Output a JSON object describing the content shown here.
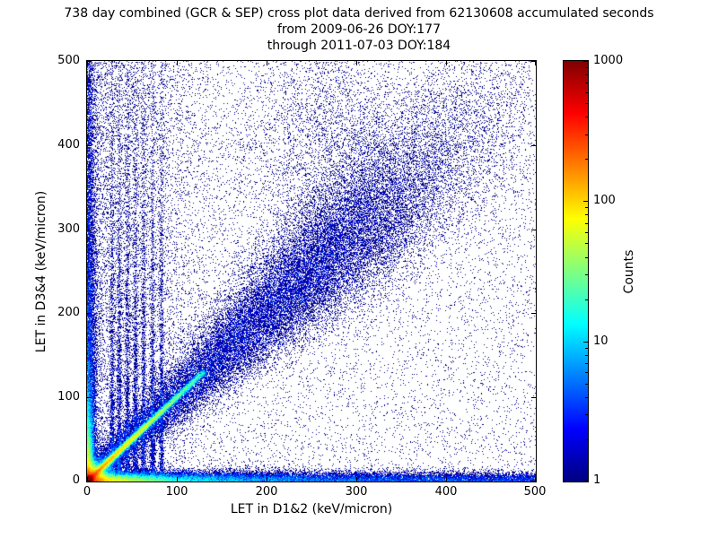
{
  "title": {
    "line1": "738 day combined (GCR & SEP) cross plot data derived from 62130608 accumulated seconds",
    "line2": "from 2009-06-26 DOY:177",
    "line3": "through 2011-07-03 DOY:184"
  },
  "chart_data": {
    "type": "heatmap",
    "description": "2D log-scaled count density cross plot (jet colormap) of LET in detector pair D1&2 vs LET in D3&4. Very hot (red, ~1000 counts) core at origin, a bright y=x ridge fading red-yellow-green out to ~100 keV/micron, a diffuse blue diagonal band continuing to (500,500) densest near (230-320, 230-320), hot strips along both axes, faint vertical streaks near x=30-85, and sparse single-count dark blue points everywhere.",
    "xlabel": "LET in D1&2 (keV/micron)",
    "ylabel": "LET in D3&4 (keV/micron)",
    "xlim": [
      0,
      500
    ],
    "ylim": [
      0,
      500
    ],
    "x_ticks": [
      0,
      100,
      200,
      300,
      400,
      500
    ],
    "y_ticks": [
      0,
      100,
      200,
      300,
      400,
      500
    ],
    "grid": false,
    "colorbar": {
      "label": "Counts",
      "scale": "log",
      "min": 1,
      "max": 1000,
      "ticks": [
        1,
        10,
        100,
        1000
      ],
      "colormap": "jet",
      "colormap_stops": [
        {
          "pos": 0.0,
          "color": "#000080"
        },
        {
          "pos": 0.125,
          "color": "#0000ff"
        },
        {
          "pos": 0.375,
          "color": "#00ffff"
        },
        {
          "pos": 0.625,
          "color": "#ffff00"
        },
        {
          "pos": 0.875,
          "color": "#ff0000"
        },
        {
          "pos": 1.0,
          "color": "#800000"
        }
      ]
    },
    "features": [
      {
        "type": "gaussian",
        "comment": "hot core at origin",
        "cx": 2,
        "cy": 2,
        "sx": 2.5,
        "sy": 2.5,
        "n": 15000,
        "weight": 4
      },
      {
        "type": "gaussian",
        "comment": "core halo",
        "cx": 3,
        "cy": 3,
        "sx": 8,
        "sy": 8,
        "n": 30000,
        "weight": 2
      },
      {
        "type": "gaussian",
        "comment": "outer halo",
        "cx": 0,
        "cy": 0,
        "sx": 18,
        "sy": 18,
        "n": 15000,
        "weight": 1
      },
      {
        "type": "diagonal",
        "comment": "bright y=x ridge",
        "n": 20000,
        "weight": 3,
        "decay": 55,
        "tmax": 130,
        "jitter": 1.8,
        "jitter_grow": 0
      },
      {
        "type": "diagonal",
        "comment": "diffuse diagonal GCR band to (500,500)",
        "n": 40000,
        "weight": 1,
        "decay": 200,
        "tmax": 500,
        "jitter": 4,
        "jitter_grow": 0.1,
        "hump": {
          "frac": 0.5,
          "center": 255,
          "sigma": 85
        }
      },
      {
        "type": "hband",
        "comment": "hot strip along bottom axis",
        "n": 12000,
        "weight": 2,
        "xscale": 35,
        "ywidth": 4
      },
      {
        "type": "hband",
        "comment": "bottom band mid decay",
        "n": 15000,
        "weight": 1,
        "xscale": 180,
        "ywidth": 6
      },
      {
        "type": "hband",
        "comment": "thin bottom band reaching x=500",
        "n": 8000,
        "weight": 1,
        "xscale": 0,
        "ywidth": 5
      },
      {
        "type": "vband",
        "comment": "hot strip along left axis",
        "n": 8000,
        "weight": 2,
        "yscale": 30,
        "xwidth": 3.5
      },
      {
        "type": "vband",
        "comment": "left band mid decay",
        "n": 10000,
        "weight": 1,
        "yscale": 260,
        "xwidth": 5
      },
      {
        "type": "vband",
        "comment": "broad left-region scatter",
        "n": 7000,
        "weight": 1,
        "yscale": 0,
        "xwidth": 70
      },
      {
        "type": "streaks",
        "comment": "faint vertical streaks",
        "x_positions": [
          28,
          36,
          45,
          54,
          63,
          73,
          83
        ],
        "n": 9000,
        "weight": 1,
        "xjitter": 1.3,
        "ydecay": 170
      },
      {
        "type": "gaussian",
        "comment": "upper-middle diffuse cloud",
        "cx": 270,
        "cy": 400,
        "sx": 50,
        "sy": 70,
        "n": 3000,
        "weight": 1
      },
      {
        "type": "uniform",
        "comment": "sparse single counts everywhere",
        "n": 10000,
        "weight": 1
      }
    ]
  }
}
